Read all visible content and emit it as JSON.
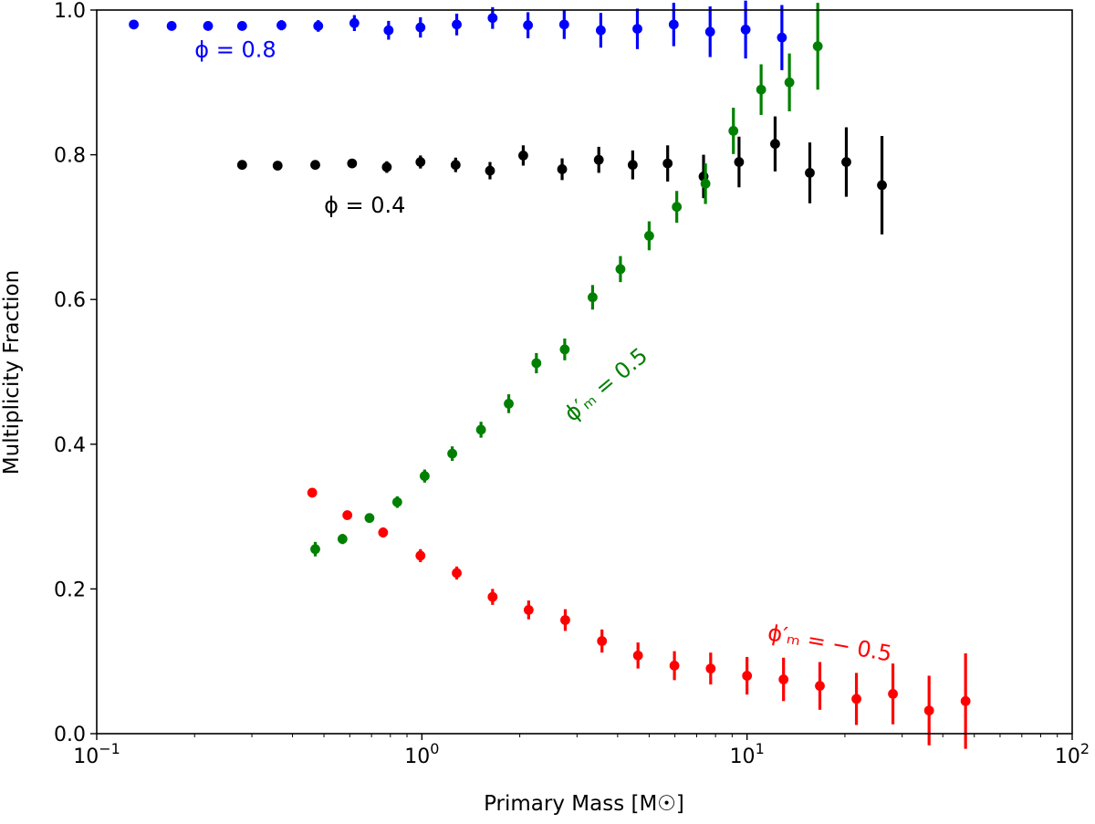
{
  "chart_data": {
    "type": "scatter",
    "xscale": "log",
    "xlim": [
      0.1,
      100
    ],
    "ylim": [
      0.0,
      1.0
    ],
    "xlabel": "Primary Mass [M☉]",
    "ylabel": "Multiplicity Fraction",
    "grid": false,
    "x_ticks": [
      {
        "value": 0.1,
        "base": "10",
        "exp": "−1"
      },
      {
        "value": 1,
        "base": "10",
        "exp": "0"
      },
      {
        "value": 10,
        "base": "10",
        "exp": "1"
      },
      {
        "value": 100,
        "base": "10",
        "exp": "2"
      }
    ],
    "y_ticks": [
      {
        "value": 0.0,
        "label": "0.0"
      },
      {
        "value": 0.2,
        "label": "0.2"
      },
      {
        "value": 0.4,
        "label": "0.4"
      },
      {
        "value": 0.6,
        "label": "0.6"
      },
      {
        "value": 0.8,
        "label": "0.8"
      },
      {
        "value": 1.0,
        "label": "1.0"
      }
    ],
    "series": [
      {
        "color": "#0000ff",
        "annotation": {
          "text": "ϕ = 0.8",
          "x": 0.2,
          "y": 0.935,
          "angle": 0
        },
        "points": [
          {
            "x": 0.13,
            "y": 0.98,
            "err": 0.004
          },
          {
            "x": 0.17,
            "y": 0.978,
            "err": 0.004
          },
          {
            "x": 0.22,
            "y": 0.978,
            "err": 0.005
          },
          {
            "x": 0.28,
            "y": 0.978,
            "err": 0.006
          },
          {
            "x": 0.37,
            "y": 0.979,
            "err": 0.007
          },
          {
            "x": 0.48,
            "y": 0.978,
            "err": 0.008
          },
          {
            "x": 0.62,
            "y": 0.982,
            "err": 0.011
          },
          {
            "x": 0.79,
            "y": 0.972,
            "err": 0.013
          },
          {
            "x": 0.99,
            "y": 0.976,
            "err": 0.014
          },
          {
            "x": 1.28,
            "y": 0.98,
            "err": 0.015
          },
          {
            "x": 1.65,
            "y": 0.989,
            "err": 0.015
          },
          {
            "x": 2.12,
            "y": 0.979,
            "err": 0.018
          },
          {
            "x": 2.74,
            "y": 0.98,
            "err": 0.02
          },
          {
            "x": 3.55,
            "y": 0.972,
            "err": 0.024
          },
          {
            "x": 4.6,
            "y": 0.974,
            "err": 0.028
          },
          {
            "x": 5.95,
            "y": 0.98,
            "err": 0.03
          },
          {
            "x": 7.7,
            "y": 0.97,
            "err": 0.035
          },
          {
            "x": 9.9,
            "y": 0.973,
            "err": 0.04
          },
          {
            "x": 12.8,
            "y": 0.962,
            "err": 0.045
          }
        ]
      },
      {
        "color": "#000000",
        "annotation": {
          "text": "ϕ = 0.4",
          "x": 0.5,
          "y": 0.72,
          "angle": 0
        },
        "points": [
          {
            "x": 0.28,
            "y": 0.786,
            "err": 0.004
          },
          {
            "x": 0.36,
            "y": 0.785,
            "err": 0.004
          },
          {
            "x": 0.47,
            "y": 0.786,
            "err": 0.005
          },
          {
            "x": 0.61,
            "y": 0.788,
            "err": 0.006
          },
          {
            "x": 0.78,
            "y": 0.783,
            "err": 0.008
          },
          {
            "x": 0.99,
            "y": 0.79,
            "err": 0.009
          },
          {
            "x": 1.27,
            "y": 0.786,
            "err": 0.01
          },
          {
            "x": 1.62,
            "y": 0.778,
            "err": 0.012
          },
          {
            "x": 2.05,
            "y": 0.799,
            "err": 0.014
          },
          {
            "x": 2.7,
            "y": 0.78,
            "err": 0.015
          },
          {
            "x": 3.5,
            "y": 0.793,
            "err": 0.018
          },
          {
            "x": 4.45,
            "y": 0.786,
            "err": 0.02
          },
          {
            "x": 5.7,
            "y": 0.788,
            "err": 0.025
          },
          {
            "x": 7.35,
            "y": 0.77,
            "err": 0.03
          },
          {
            "x": 9.45,
            "y": 0.79,
            "err": 0.035
          },
          {
            "x": 12.2,
            "y": 0.815,
            "err": 0.038
          },
          {
            "x": 15.6,
            "y": 0.775,
            "err": 0.042
          },
          {
            "x": 20.2,
            "y": 0.79,
            "err": 0.048
          },
          {
            "x": 26.0,
            "y": 0.758,
            "err": 0.068
          }
        ]
      },
      {
        "color": "#008000",
        "annotation": {
          "text": "ϕ′ₘ = 0.5",
          "x": 2.9,
          "y": 0.43,
          "angle": -40
        },
        "points": [
          {
            "x": 0.47,
            "y": 0.255,
            "err": 0.01
          },
          {
            "x": 0.57,
            "y": 0.269,
            "err": 0.007
          },
          {
            "x": 0.69,
            "y": 0.298,
            "err": 0.006
          },
          {
            "x": 0.84,
            "y": 0.32,
            "err": 0.008
          },
          {
            "x": 1.02,
            "y": 0.356,
            "err": 0.009
          },
          {
            "x": 1.24,
            "y": 0.387,
            "err": 0.01
          },
          {
            "x": 1.52,
            "y": 0.42,
            "err": 0.011
          },
          {
            "x": 1.85,
            "y": 0.456,
            "err": 0.013
          },
          {
            "x": 2.25,
            "y": 0.512,
            "err": 0.014
          },
          {
            "x": 2.75,
            "y": 0.531,
            "err": 0.015
          },
          {
            "x": 3.35,
            "y": 0.603,
            "err": 0.017
          },
          {
            "x": 4.08,
            "y": 0.642,
            "err": 0.018
          },
          {
            "x": 5.0,
            "y": 0.688,
            "err": 0.02
          },
          {
            "x": 6.08,
            "y": 0.728,
            "err": 0.022
          },
          {
            "x": 7.45,
            "y": 0.76,
            "err": 0.028
          },
          {
            "x": 9.08,
            "y": 0.833,
            "err": 0.032
          },
          {
            "x": 11.05,
            "y": 0.89,
            "err": 0.035
          },
          {
            "x": 13.5,
            "y": 0.9,
            "err": 0.04
          },
          {
            "x": 16.5,
            "y": 0.95,
            "err": 0.06
          }
        ]
      },
      {
        "color": "#ff0000",
        "annotation": {
          "text": "ϕ′ₘ = − 0.5",
          "x": 11.5,
          "y": 0.13,
          "angle": 10
        },
        "points": [
          {
            "x": 0.46,
            "y": 0.333,
            "err": 0.006
          },
          {
            "x": 0.59,
            "y": 0.302,
            "err": 0.006
          },
          {
            "x": 0.76,
            "y": 0.278,
            "err": 0.007
          },
          {
            "x": 0.99,
            "y": 0.246,
            "err": 0.009
          },
          {
            "x": 1.28,
            "y": 0.222,
            "err": 0.009
          },
          {
            "x": 1.65,
            "y": 0.189,
            "err": 0.011
          },
          {
            "x": 2.13,
            "y": 0.171,
            "err": 0.013
          },
          {
            "x": 2.76,
            "y": 0.157,
            "err": 0.015
          },
          {
            "x": 3.58,
            "y": 0.128,
            "err": 0.016
          },
          {
            "x": 4.62,
            "y": 0.108,
            "err": 0.018
          },
          {
            "x": 5.98,
            "y": 0.094,
            "err": 0.02
          },
          {
            "x": 7.73,
            "y": 0.09,
            "err": 0.022
          },
          {
            "x": 10.0,
            "y": 0.08,
            "err": 0.026
          },
          {
            "x": 12.95,
            "y": 0.075,
            "err": 0.03
          },
          {
            "x": 16.75,
            "y": 0.066,
            "err": 0.033
          },
          {
            "x": 21.7,
            "y": 0.048,
            "err": 0.036
          },
          {
            "x": 28.1,
            "y": 0.055,
            "err": 0.042
          },
          {
            "x": 36.3,
            "y": 0.032,
            "err": 0.048
          },
          {
            "x": 47.0,
            "y": 0.045,
            "err": 0.066
          }
        ]
      }
    ]
  }
}
